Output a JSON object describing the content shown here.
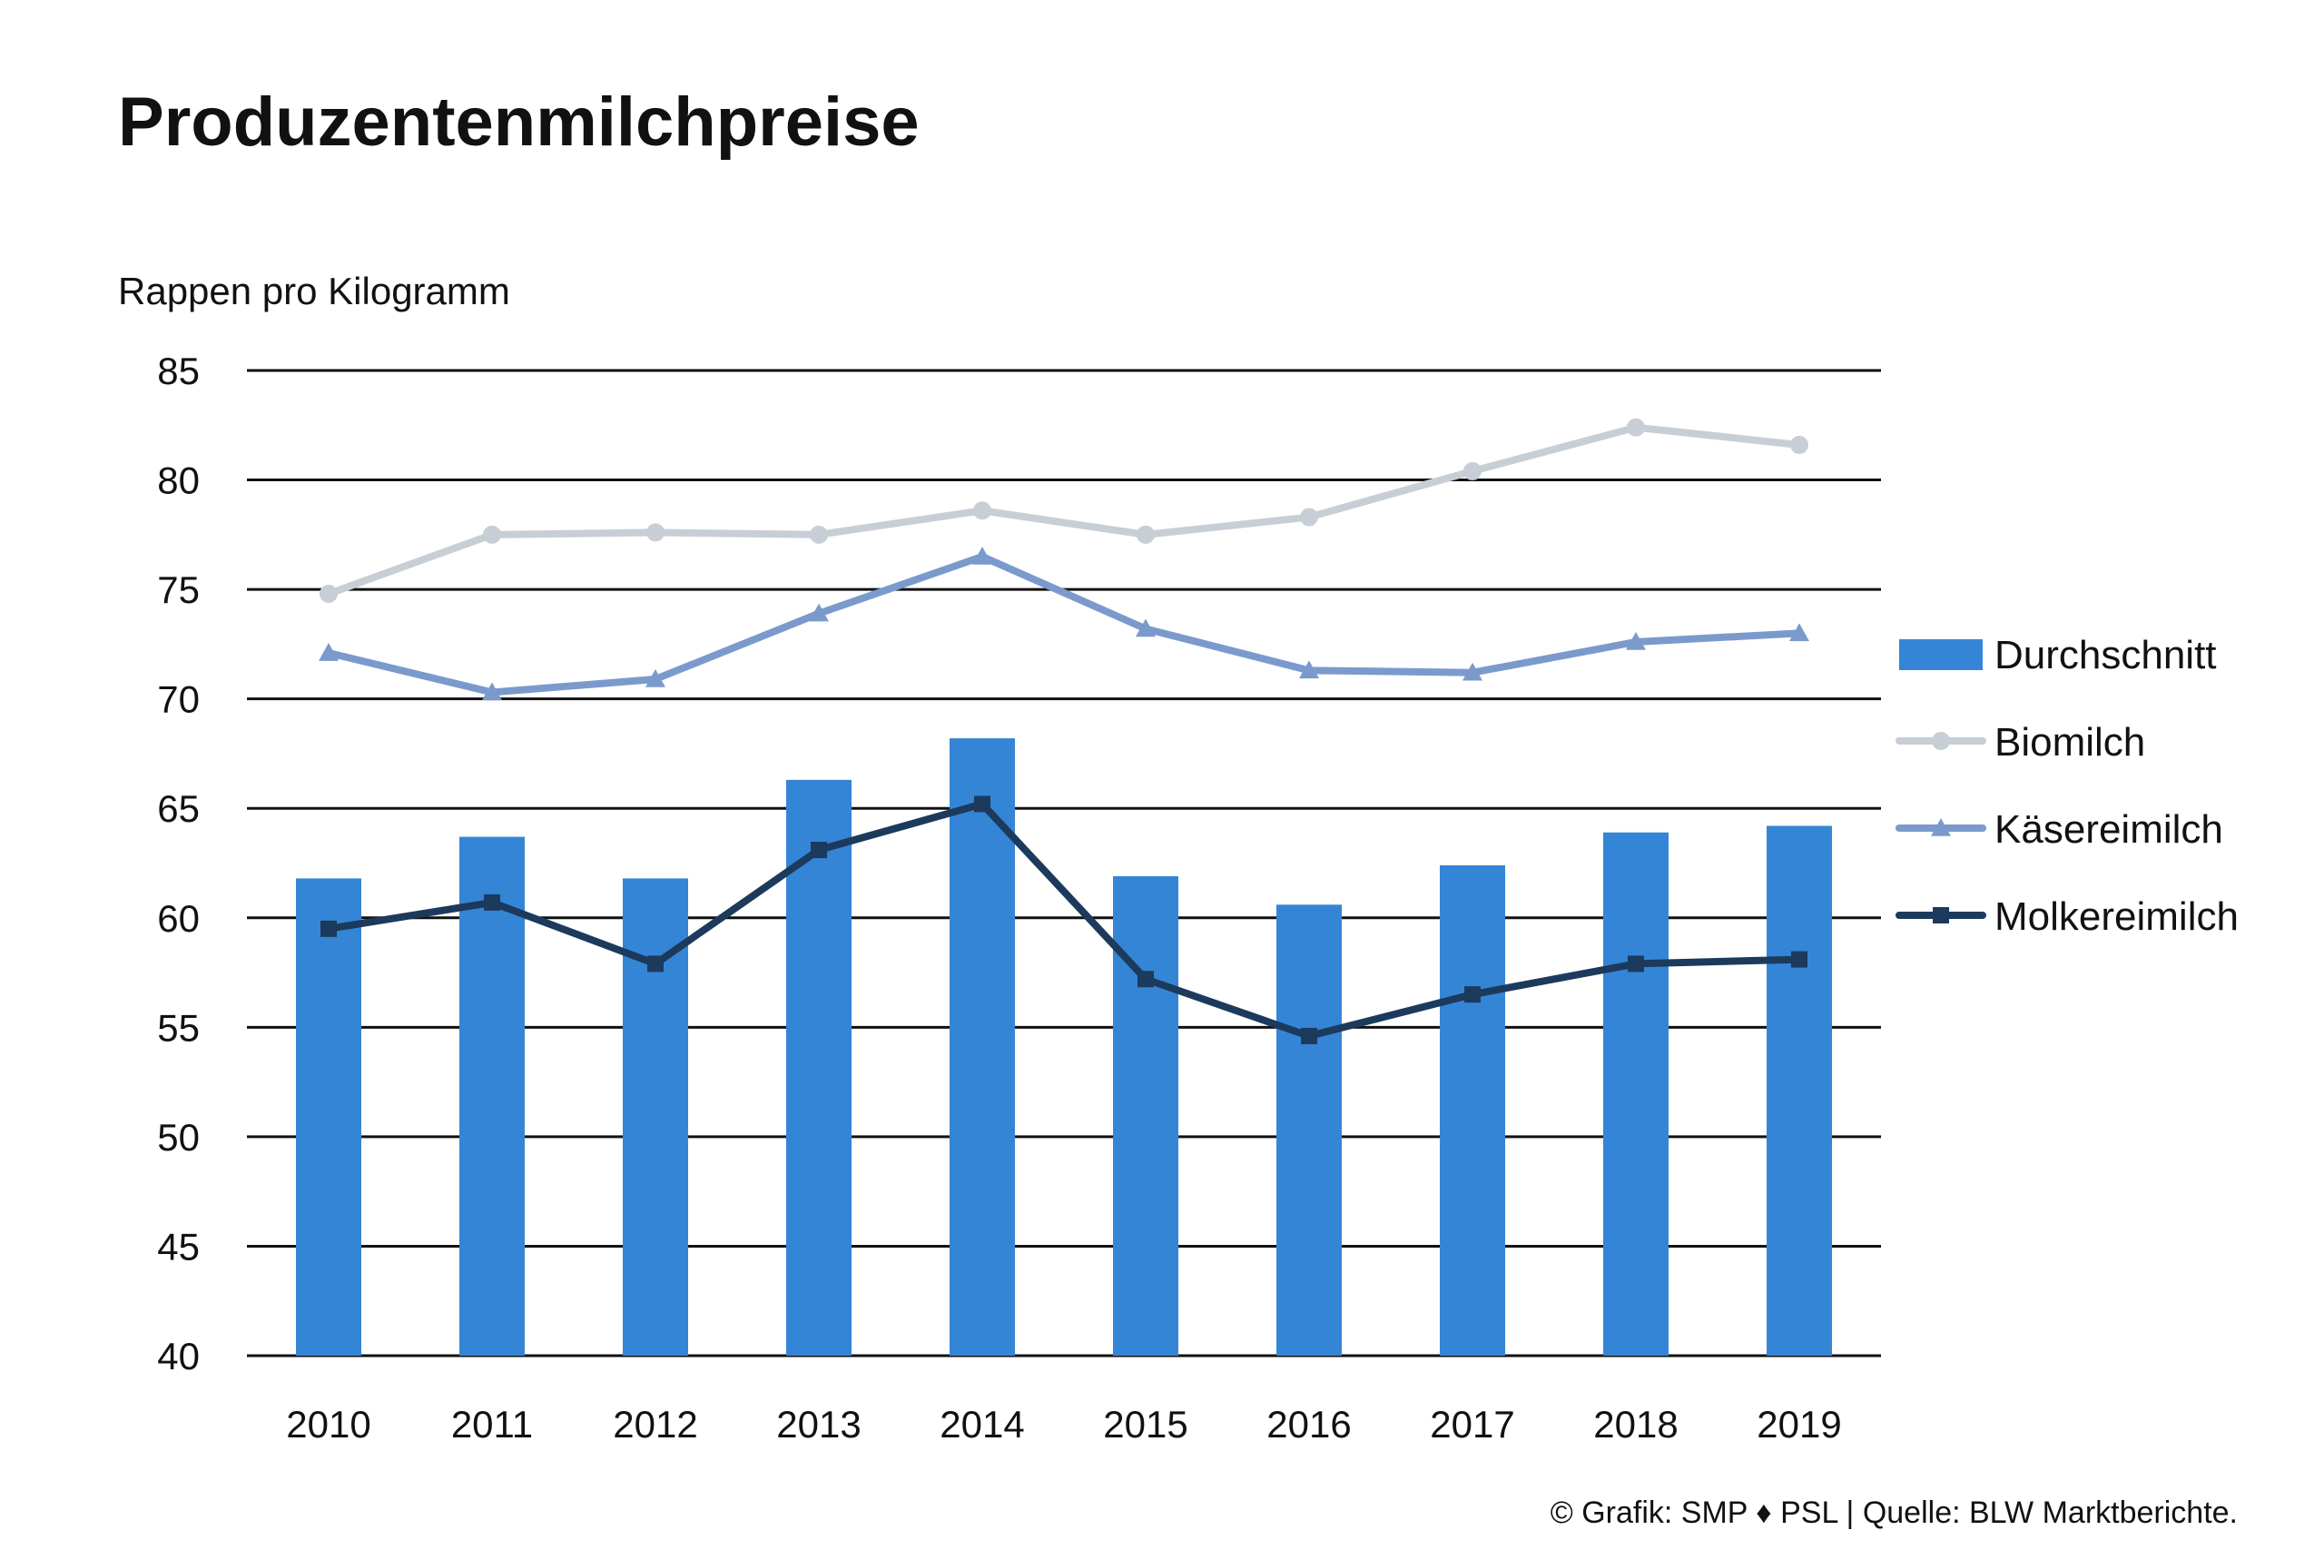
{
  "chart_data": {
    "type": "bar",
    "title": "Produzentenmilchpreise",
    "ylabel": "Rappen pro Kilogramm",
    "xlabel": "",
    "ylim": [
      40,
      85
    ],
    "yticks": [
      40,
      45,
      50,
      55,
      60,
      65,
      70,
      75,
      80,
      85
    ],
    "grid": true,
    "legend_position": "right",
    "categories": [
      "2010",
      "2011",
      "2012",
      "2013",
      "2014",
      "2015",
      "2016",
      "2017",
      "2018",
      "2019"
    ],
    "series": [
      {
        "name": "Durchschnitt",
        "type": "bar",
        "color": "#3585d6",
        "values": [
          61.8,
          63.7,
          61.8,
          66.3,
          68.2,
          61.9,
          60.6,
          62.4,
          63.9,
          64.2
        ]
      },
      {
        "name": "Biomilch",
        "type": "line",
        "marker": "circle",
        "color": "#c8ced6",
        "values": [
          74.8,
          77.5,
          77.6,
          77.5,
          78.6,
          77.5,
          78.3,
          80.4,
          82.4,
          81.6
        ]
      },
      {
        "name": "Käsereimilch",
        "type": "line",
        "marker": "triangle",
        "color": "#7b9acc",
        "values": [
          72.1,
          70.3,
          70.9,
          73.9,
          76.5,
          73.2,
          71.3,
          71.2,
          72.6,
          73.0
        ]
      },
      {
        "name": "Molkereimilch",
        "type": "line",
        "marker": "square",
        "color": "#1c3a5c",
        "values": [
          59.5,
          60.7,
          57.9,
          63.1,
          65.2,
          57.2,
          54.6,
          56.5,
          57.9,
          58.1
        ]
      }
    ],
    "source": "© Grafik: SMP ♦ PSL | Quelle: BLW Marktberichte."
  }
}
